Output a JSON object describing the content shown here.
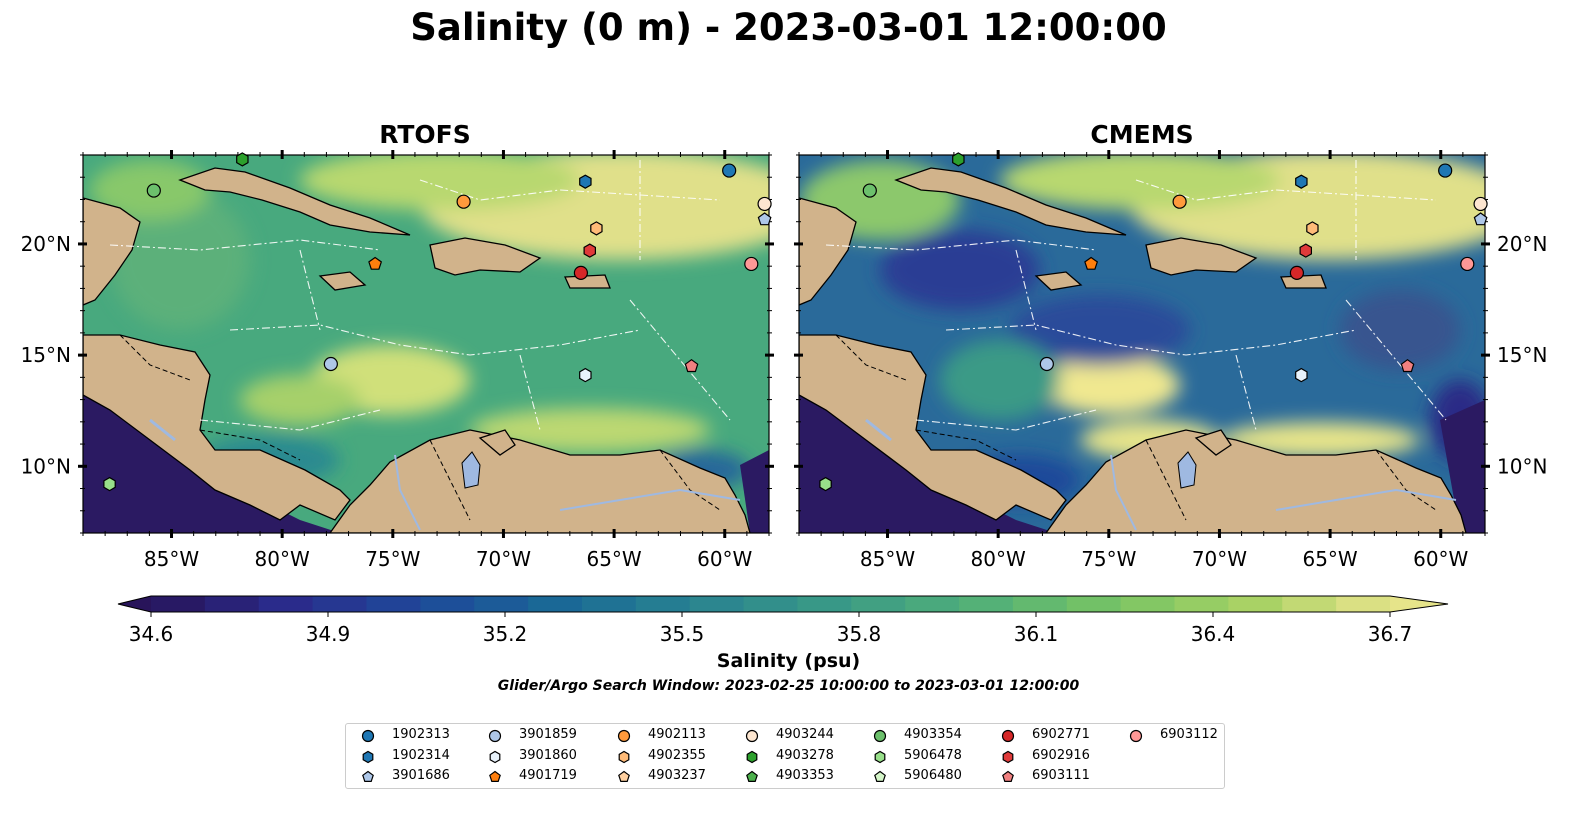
{
  "title": "Salinity (0 m) - 2023-03-01 12:00:00",
  "panels": [
    {
      "title": "RTOFS"
    },
    {
      "title": "CMEMS"
    }
  ],
  "lon_ticks": [
    "85°W",
    "80°W",
    "75°W",
    "70°W",
    "65°W",
    "60°W"
  ],
  "lat_ticks": [
    "20°N",
    "15°N",
    "10°N"
  ],
  "colorbar": {
    "label": "Salinity (psu)",
    "ticks": [
      "34.6",
      "34.9",
      "35.2",
      "35.5",
      "35.8",
      "36.1",
      "36.4",
      "36.7"
    ],
    "min": 34.6,
    "max": 36.7,
    "extend": "both",
    "colormap": [
      "#28145a",
      "#2a2c8c",
      "#1e4a9a",
      "#1a6a96",
      "#2a8490",
      "#3a9a86",
      "#52b078",
      "#78c464",
      "#a8d264",
      "#e6e48a"
    ]
  },
  "subtitle": "Glider/Argo Search Window: 2023-02-25 10:00:00 to 2023-03-01 12:00:00",
  "legend": [
    {
      "label": "1902313",
      "marker": "circle",
      "color": "#1f77b4"
    },
    {
      "label": "1902314",
      "marker": "hexagon",
      "color": "#1f77b4"
    },
    {
      "label": "3901686",
      "marker": "pentagon",
      "color": "#aec7e8"
    },
    {
      "label": "3901859",
      "marker": "circle",
      "color": "#aec7e8"
    },
    {
      "label": "3901860",
      "marker": "hexagon",
      "color": "#e8f2fb"
    },
    {
      "label": "4901719",
      "marker": "pentagon",
      "color": "#ff7f0e"
    },
    {
      "label": "4902113",
      "marker": "circle",
      "color": "#ff9a3c"
    },
    {
      "label": "4902355",
      "marker": "hexagon",
      "color": "#ffbb78"
    },
    {
      "label": "4903237",
      "marker": "pentagon",
      "color": "#ffd0a0"
    },
    {
      "label": "4903244",
      "marker": "circle",
      "color": "#fde6d0"
    },
    {
      "label": "4903278",
      "marker": "hexagon",
      "color": "#2ca02c"
    },
    {
      "label": "4903353",
      "marker": "pentagon",
      "color": "#4cb04c"
    },
    {
      "label": "4903354",
      "marker": "circle",
      "color": "#6cc06c"
    },
    {
      "label": "5906478",
      "marker": "hexagon",
      "color": "#98df8a"
    },
    {
      "label": "5906480",
      "marker": "pentagon",
      "color": "#d4f5c8"
    },
    {
      "label": "6902771",
      "marker": "circle",
      "color": "#d62728"
    },
    {
      "label": "6902916",
      "marker": "hexagon",
      "color": "#e03a3a"
    },
    {
      "label": "6903111",
      "marker": "pentagon",
      "color": "#f08080"
    },
    {
      "label": "6903112",
      "marker": "circle",
      "color": "#ff9896"
    }
  ],
  "floats": [
    {
      "id": "1902313",
      "lon": -59.8,
      "lat": 23.3
    },
    {
      "id": "1902314",
      "lon": -66.3,
      "lat": 22.8
    },
    {
      "id": "3901686",
      "lon": -58.2,
      "lat": 21.1
    },
    {
      "id": "3901859",
      "lon": -77.8,
      "lat": 14.6
    },
    {
      "id": "3901860",
      "lon": -66.3,
      "lat": 14.1
    },
    {
      "id": "4901719",
      "lon": -75.8,
      "lat": 19.1
    },
    {
      "id": "4902113",
      "lon": -71.8,
      "lat": 21.9
    },
    {
      "id": "4902355",
      "lon": -65.8,
      "lat": 20.7
    },
    {
      "id": "4903244",
      "lon": -58.2,
      "lat": 21.8
    },
    {
      "id": "4903278",
      "lon": -81.8,
      "lat": 23.8
    },
    {
      "id": "4903354",
      "lon": -85.8,
      "lat": 22.4
    },
    {
      "id": "5906478",
      "lon": -87.8,
      "lat": 9.2
    },
    {
      "id": "6902771",
      "lon": -66.5,
      "lat": 18.7
    },
    {
      "id": "6902916",
      "lon": -66.1,
      "lat": 19.7
    },
    {
      "id": "6903111",
      "lon": -61.5,
      "lat": 14.5
    },
    {
      "id": "6903112",
      "lon": -58.8,
      "lat": 19.1
    }
  ],
  "map_extent": {
    "lon": [
      -89,
      -58
    ],
    "lat": [
      7,
      24
    ]
  }
}
